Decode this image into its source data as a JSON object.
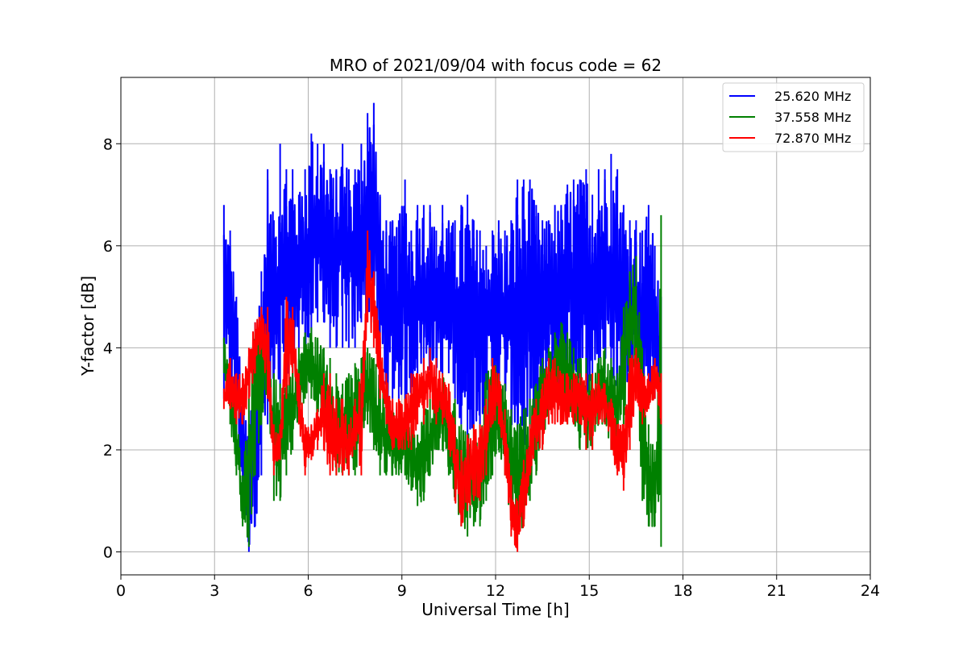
{
  "chart_data": {
    "type": "line",
    "title": "MRO of 2021/09/04 with focus code = 62",
    "xlabel": "Universal Time [h]",
    "ylabel": "Y-factor [dB]",
    "xlim": [
      0,
      24
    ],
    "ylim": [
      -0.45,
      9.3
    ],
    "xticks": [
      0,
      3,
      6,
      9,
      12,
      15,
      18,
      21,
      24
    ],
    "yticks": [
      0,
      2,
      4,
      6,
      8
    ],
    "grid": true,
    "legend_position": "top-right",
    "series": [
      {
        "name": "25.620 MHz",
        "color": "#0000ff",
        "x": [
          3.3,
          3.5,
          3.7,
          3.9,
          4.1,
          4.3,
          4.5,
          4.7,
          4.9,
          5.1,
          5.3,
          5.5,
          5.7,
          5.9,
          6.1,
          6.3,
          6.5,
          6.7,
          6.9,
          7.1,
          7.3,
          7.5,
          7.7,
          7.9,
          8.1,
          8.3,
          8.5,
          8.7,
          8.9,
          9.1,
          9.3,
          9.5,
          9.7,
          9.9,
          10.1,
          10.3,
          10.5,
          10.7,
          10.9,
          11.1,
          11.3,
          11.5,
          11.7,
          11.9,
          12.1,
          12.3,
          12.5,
          12.7,
          12.9,
          13.1,
          13.3,
          13.5,
          13.7,
          13.9,
          14.1,
          14.3,
          14.5,
          14.7,
          14.9,
          15.1,
          15.3,
          15.5,
          15.7,
          15.9,
          16.1,
          16.3,
          16.5,
          16.7,
          16.9,
          17.1,
          17.3
        ],
        "y_min": [
          3.0,
          3.0,
          2.5,
          1.0,
          0.0,
          0.5,
          1.5,
          2.5,
          2.5,
          3.0,
          3.5,
          3.5,
          4.0,
          4.0,
          4.0,
          4.5,
          4.5,
          4.0,
          4.0,
          4.0,
          4.0,
          4.0,
          4.5,
          4.5,
          4.5,
          3.5,
          3.0,
          3.0,
          3.0,
          3.0,
          3.0,
          3.5,
          3.5,
          3.5,
          3.5,
          3.5,
          3.5,
          3.0,
          2.5,
          2.0,
          2.5,
          2.5,
          3.0,
          3.0,
          3.0,
          3.0,
          2.5,
          2.0,
          1.8,
          2.0,
          2.5,
          2.5,
          3.0,
          3.0,
          3.0,
          3.5,
          3.0,
          3.0,
          3.0,
          3.5,
          3.5,
          3.5,
          3.5,
          3.0,
          3.0,
          3.5,
          3.5,
          3.0,
          3.0,
          3.0,
          2.0
        ],
        "y_max": [
          6.8,
          6.3,
          5.0,
          3.0,
          2.5,
          4.5,
          5.5,
          7.5,
          6.5,
          8.0,
          7.5,
          7.5,
          7.0,
          7.5,
          8.2,
          8.0,
          8.0,
          7.5,
          7.5,
          8.0,
          7.5,
          7.5,
          8.0,
          8.6,
          8.8,
          7.0,
          6.5,
          6.5,
          6.5,
          7.3,
          6.3,
          6.8,
          6.8,
          6.8,
          6.3,
          6.8,
          6.5,
          6.5,
          6.8,
          7.0,
          6.5,
          6.3,
          6.0,
          6.3,
          6.5,
          6.3,
          6.5,
          7.3,
          7.3,
          7.3,
          6.8,
          6.5,
          6.5,
          6.8,
          6.8,
          7.2,
          7.3,
          7.3,
          7.5,
          7.0,
          7.5,
          7.5,
          7.8,
          7.5,
          6.8,
          6.5,
          6.5,
          6.3,
          6.8,
          6.0,
          5.0
        ]
      },
      {
        "name": "37.558 MHz",
        "color": "#008000",
        "x": [
          3.3,
          3.5,
          3.7,
          3.9,
          4.1,
          4.3,
          4.5,
          4.7,
          4.9,
          5.1,
          5.3,
          5.5,
          5.7,
          5.9,
          6.1,
          6.3,
          6.5,
          6.7,
          6.9,
          7.1,
          7.3,
          7.5,
          7.7,
          7.9,
          8.1,
          8.3,
          8.5,
          8.7,
          8.9,
          9.1,
          9.3,
          9.5,
          9.7,
          9.9,
          10.1,
          10.3,
          10.5,
          10.7,
          10.9,
          11.1,
          11.3,
          11.5,
          11.7,
          11.9,
          12.1,
          12.3,
          12.5,
          12.7,
          12.9,
          13.1,
          13.3,
          13.5,
          13.7,
          13.9,
          14.1,
          14.3,
          14.5,
          14.7,
          14.9,
          15.1,
          15.3,
          15.5,
          15.7,
          15.9,
          16.1,
          16.3,
          16.5,
          16.7,
          16.9,
          17.1,
          17.3
        ],
        "y_min": [
          3.5,
          2.5,
          1.5,
          0.5,
          0.1,
          1.5,
          2.5,
          3.0,
          1.0,
          1.0,
          1.5,
          2.0,
          2.5,
          3.0,
          3.0,
          2.5,
          2.5,
          2.0,
          1.5,
          1.5,
          1.5,
          1.5,
          2.0,
          2.5,
          2.0,
          1.5,
          1.5,
          1.5,
          1.5,
          1.5,
          1.2,
          0.9,
          1.0,
          1.5,
          2.0,
          2.0,
          1.5,
          1.0,
          0.5,
          0.3,
          0.5,
          0.5,
          1.0,
          1.5,
          2.0,
          1.5,
          0.5,
          0.3,
          0.5,
          1.0,
          1.5,
          2.0,
          2.5,
          3.0,
          3.0,
          2.5,
          2.5,
          2.0,
          2.0,
          2.0,
          2.5,
          2.5,
          2.0,
          2.0,
          2.5,
          3.5,
          3.5,
          1.0,
          0.5,
          0.5,
          0.1
        ],
        "y_max": [
          4.2,
          3.5,
          3.0,
          1.5,
          3.5,
          4.3,
          4.5,
          4.3,
          3.5,
          3.3,
          3.5,
          3.8,
          4.0,
          4.3,
          4.4,
          4.2,
          4.0,
          3.8,
          3.5,
          3.3,
          3.5,
          3.7,
          3.8,
          4.0,
          3.8,
          3.5,
          3.0,
          2.8,
          2.5,
          3.0,
          2.5,
          2.3,
          2.8,
          3.0,
          3.5,
          3.5,
          3.2,
          3.0,
          2.5,
          2.3,
          2.5,
          2.5,
          3.5,
          3.8,
          3.5,
          3.3,
          2.8,
          2.5,
          2.8,
          3.0,
          3.3,
          3.8,
          4.0,
          4.3,
          4.5,
          4.3,
          4.0,
          3.8,
          3.8,
          3.5,
          3.8,
          4.0,
          3.8,
          3.5,
          4.8,
          5.5,
          5.8,
          4.0,
          2.5,
          2.0,
          6.6
        ]
      },
      {
        "name": "72.870 MHz",
        "color": "#ff0000",
        "x": [
          3.3,
          3.5,
          3.7,
          3.9,
          4.1,
          4.3,
          4.5,
          4.7,
          4.9,
          5.1,
          5.3,
          5.5,
          5.7,
          5.9,
          6.1,
          6.3,
          6.5,
          6.7,
          6.9,
          7.1,
          7.3,
          7.5,
          7.7,
          7.9,
          8.1,
          8.3,
          8.5,
          8.7,
          8.9,
          9.1,
          9.3,
          9.5,
          9.7,
          9.9,
          10.1,
          10.3,
          10.5,
          10.7,
          10.9,
          11.1,
          11.3,
          11.5,
          11.7,
          11.9,
          12.1,
          12.3,
          12.5,
          12.7,
          12.9,
          13.1,
          13.3,
          13.5,
          13.7,
          13.9,
          14.1,
          14.3,
          14.5,
          14.7,
          14.9,
          15.1,
          15.3,
          15.5,
          15.7,
          15.9,
          16.1,
          16.3,
          16.5,
          16.7,
          16.9,
          17.1,
          17.3
        ],
        "y_min": [
          2.8,
          2.8,
          2.5,
          2.5,
          3.0,
          3.5,
          4.0,
          3.0,
          1.5,
          1.8,
          3.0,
          3.5,
          2.5,
          1.5,
          1.8,
          2.0,
          2.0,
          1.5,
          1.5,
          1.5,
          1.5,
          2.0,
          1.5,
          4.5,
          4.0,
          3.0,
          2.5,
          2.0,
          2.0,
          2.0,
          2.0,
          2.5,
          2.5,
          3.0,
          2.5,
          2.5,
          2.0,
          1.0,
          0.5,
          0.8,
          1.0,
          1.0,
          1.5,
          2.5,
          2.5,
          1.5,
          0.3,
          0.0,
          0.5,
          1.5,
          2.0,
          2.0,
          2.5,
          2.5,
          2.5,
          2.5,
          2.5,
          2.5,
          2.0,
          2.0,
          2.5,
          2.5,
          2.0,
          1.5,
          1.2,
          2.0,
          3.0,
          2.5,
          2.8,
          3.0,
          2.5
        ],
        "y_max": [
          3.2,
          3.8,
          3.5,
          3.5,
          4.0,
          4.5,
          4.8,
          4.8,
          2.5,
          2.5,
          5.0,
          4.8,
          3.5,
          2.5,
          2.5,
          2.8,
          3.5,
          3.5,
          3.0,
          3.0,
          2.5,
          3.0,
          3.5,
          6.3,
          5.5,
          4.3,
          3.5,
          3.0,
          3.0,
          3.0,
          3.5,
          3.5,
          3.8,
          4.0,
          3.8,
          3.5,
          3.3,
          2.5,
          2.0,
          2.3,
          2.5,
          2.5,
          3.0,
          3.8,
          3.5,
          2.8,
          1.5,
          1.0,
          1.8,
          2.5,
          3.0,
          3.3,
          3.8,
          3.8,
          3.5,
          3.5,
          3.5,
          3.5,
          3.5,
          3.5,
          3.5,
          3.3,
          3.0,
          2.5,
          2.5,
          3.8,
          4.0,
          3.5,
          3.5,
          3.8,
          3.5
        ]
      }
    ]
  }
}
